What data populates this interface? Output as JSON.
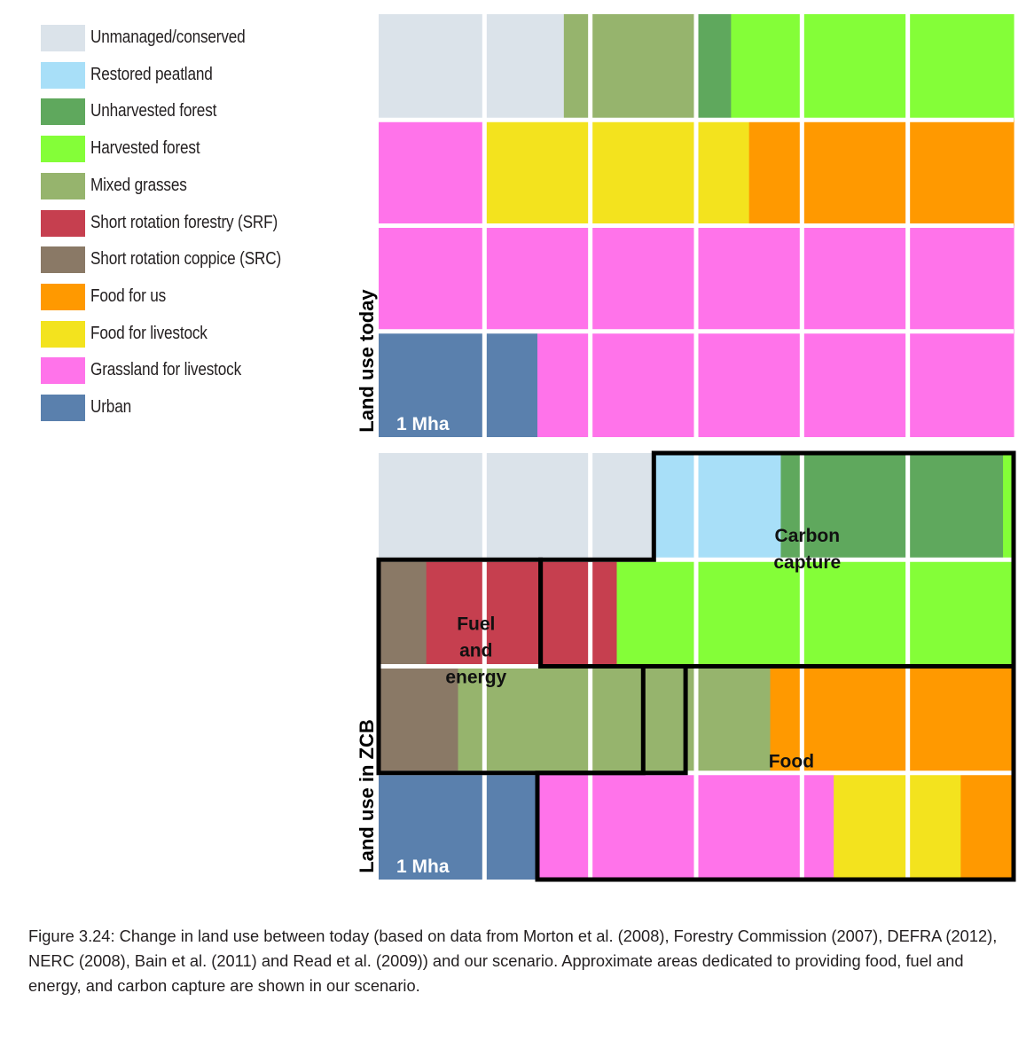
{
  "legend": [
    {
      "key": "unmanaged",
      "label": "Unmanaged/conserved",
      "color": "#dbe3ea"
    },
    {
      "key": "peat",
      "label": "Restored peatland",
      "color": "#a8dff8"
    },
    {
      "key": "unharvested",
      "label": "Unharvested forest",
      "color": "#5fa85d"
    },
    {
      "key": "harvested",
      "label": "Harvested forest",
      "color": "#84fe38"
    },
    {
      "key": "mixed",
      "label": "Mixed grasses",
      "color": "#96b46d"
    },
    {
      "key": "srf",
      "label": "Short rotation forestry (SRF)",
      "color": "#c63f4f"
    },
    {
      "key": "src",
      "label": "Short rotation coppice (SRC)",
      "color": "#8a7966"
    },
    {
      "key": "food_us",
      "label": "Food for us",
      "color": "#ff9900"
    },
    {
      "key": "food_livestock",
      "label": "Food for livestock",
      "color": "#f3e31e"
    },
    {
      "key": "grassland",
      "label": "Grassland for livestock",
      "color": "#ff73ea"
    },
    {
      "key": "urban",
      "label": "Urban",
      "color": "#5a80ad"
    }
  ],
  "chart_data": [
    {
      "type": "waffle",
      "title": "Land use today",
      "unit_label": "1 Mha",
      "columns": 6,
      "rows": [
        [
          {
            "category": "unmanaged",
            "value": 1
          },
          {
            "category": "unmanaged",
            "value": 0.75
          },
          {
            "category": "mixed",
            "value": 0.25
          },
          {
            "category": "mixed",
            "value": 1
          },
          {
            "category": "unharvested",
            "value": 0.33
          },
          {
            "category": "harvested",
            "value": 0.67
          },
          {
            "category": "harvested",
            "value": 1
          },
          {
            "category": "harvested",
            "value": 1
          }
        ],
        [
          {
            "category": "grassland",
            "value": 1
          },
          {
            "category": "food_livestock",
            "value": 1
          },
          {
            "category": "food_livestock",
            "value": 1
          },
          {
            "category": "food_livestock",
            "value": 0.5
          },
          {
            "category": "food_us",
            "value": 0.5
          },
          {
            "category": "food_us",
            "value": 1
          },
          {
            "category": "food_us",
            "value": 1
          }
        ],
        [
          {
            "category": "grassland",
            "value": 6
          }
        ],
        [
          {
            "category": "urban",
            "value": 1
          },
          {
            "category": "urban",
            "value": 0.5
          },
          {
            "category": "grassland",
            "value": 0.5
          },
          {
            "category": "grassland",
            "value": 4
          }
        ]
      ]
    },
    {
      "type": "waffle",
      "title": "Land use in ZCB",
      "unit_label": "1 Mha",
      "columns": 6,
      "rows": [
        [
          {
            "category": "unmanaged",
            "value": 2.6
          },
          {
            "category": "peat",
            "value": 1.2
          },
          {
            "category": "unharvested",
            "value": 2.1
          },
          {
            "category": "harvested",
            "value": 0.1
          }
        ],
        [
          {
            "category": "src",
            "value": 0.45
          },
          {
            "category": "srf",
            "value": 1.8
          },
          {
            "category": "harvested",
            "value": 3.75
          }
        ],
        [
          {
            "category": "src",
            "value": 0.75
          },
          {
            "category": "mixed",
            "value": 2.95
          },
          {
            "category": "food_us",
            "value": 2.3
          }
        ],
        [
          {
            "category": "urban",
            "value": 1
          },
          {
            "category": "urban",
            "value": 0.5
          },
          {
            "category": "grassland",
            "value": 2.8
          },
          {
            "category": "food_livestock",
            "value": 1.2
          },
          {
            "category": "food_us",
            "value": 0.5
          }
        ]
      ],
      "regions": [
        {
          "name": "carbon-capture",
          "label_lines": [
            "Carbon",
            "capture"
          ]
        },
        {
          "name": "fuel-and-energy",
          "label_lines": [
            "Fuel",
            "and",
            "energy"
          ]
        },
        {
          "name": "food",
          "label_lines": [
            "Food"
          ]
        }
      ]
    }
  ],
  "caption": "Figure 3.24: Change in land use between today (based on data from Morton et al. (2008), Forestry Commission (2007), DEFRA (2012), NERC (2008), Bain et al. (2011) and Read et al. (2009)) and our scenario. Approximate areas dedicated to providing food, fuel and energy, and carbon capture are shown in our scenario."
}
